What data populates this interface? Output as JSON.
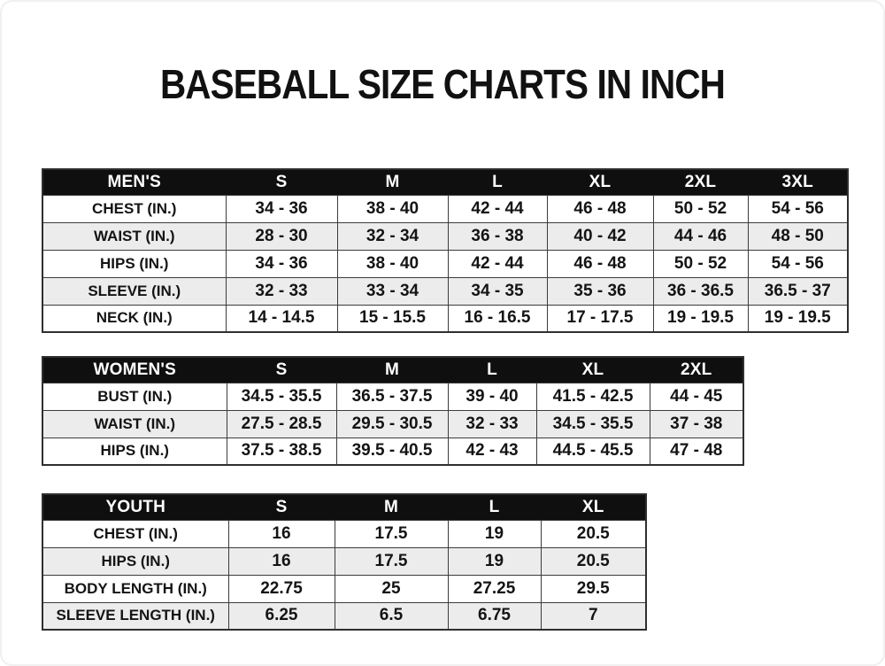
{
  "page_title": "BASEBALL SIZE CHARTS IN INCH",
  "chart_data": [
    {
      "type": "table",
      "name": "mens",
      "header": [
        "MEN'S",
        "S",
        "M",
        "L",
        "XL",
        "2XL",
        "3XL"
      ],
      "rows": [
        [
          "CHEST (IN.)",
          "34 - 36",
          "38 - 40",
          "42 - 44",
          "46 - 48",
          "50 - 52",
          "54 - 56"
        ],
        [
          "WAIST (IN.)",
          "28 - 30",
          "32 - 34",
          "36 - 38",
          "40 - 42",
          "44 - 46",
          "48 - 50"
        ],
        [
          "HIPS (IN.)",
          "34 - 36",
          "38 - 40",
          "42 - 44",
          "46 - 48",
          "50 - 52",
          "54 - 56"
        ],
        [
          "SLEEVE (IN.)",
          "32 - 33",
          "33 - 34",
          "34 - 35",
          "35 - 36",
          "36 - 36.5",
          "36.5 - 37"
        ],
        [
          "NECK (IN.)",
          "14 - 14.5",
          "15 - 15.5",
          "16 - 16.5",
          "17 - 17.5",
          "19 - 19.5",
          "19 - 19.5"
        ]
      ]
    },
    {
      "type": "table",
      "name": "womens",
      "header": [
        "WOMEN'S",
        "S",
        "M",
        "L",
        "XL",
        "2XL"
      ],
      "rows": [
        [
          "BUST (IN.)",
          "34.5 - 35.5",
          "36.5 - 37.5",
          "39 - 40",
          "41.5 - 42.5",
          "44 - 45"
        ],
        [
          "WAIST (IN.)",
          "27.5 - 28.5",
          "29.5 - 30.5",
          "32 - 33",
          "34.5 - 35.5",
          "37 - 38"
        ],
        [
          "HIPS (IN.)",
          "37.5 - 38.5",
          "39.5 - 40.5",
          "42 - 43",
          "44.5 - 45.5",
          "47 - 48"
        ]
      ]
    },
    {
      "type": "table",
      "name": "youth",
      "header": [
        "YOUTH",
        "S",
        "M",
        "L",
        "XL"
      ],
      "rows": [
        [
          "CHEST (IN.)",
          "16",
          "17.5",
          "19",
          "20.5"
        ],
        [
          "HIPS (IN.)",
          "16",
          "17.5",
          "19",
          "20.5"
        ],
        [
          "BODY LENGTH (IN.)",
          "22.75",
          "25",
          "27.25",
          "29.5"
        ],
        [
          "SLEEVE LENGTH (IN.)",
          "6.25",
          "6.5",
          "6.75",
          "7"
        ]
      ]
    }
  ],
  "colors": {
    "header_bg": "#0f0f0f",
    "header_text": "#ffffff",
    "row_stripe": "#ececec",
    "text": "#141414",
    "background": "#ffffff"
  }
}
